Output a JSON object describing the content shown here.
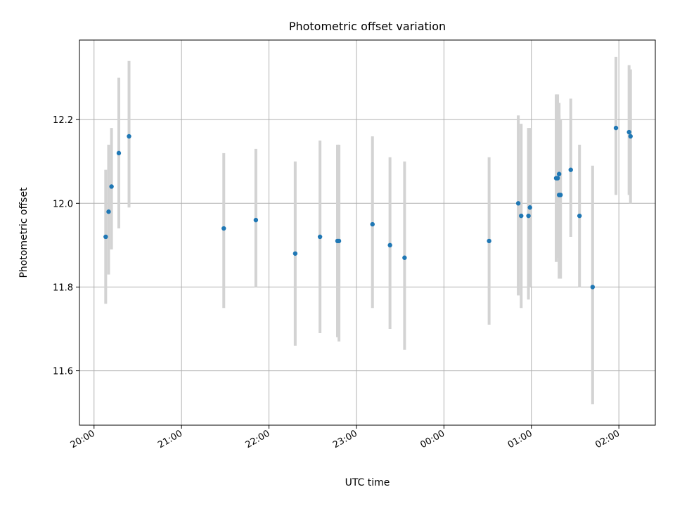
{
  "chart_data": {
    "type": "scatter",
    "title": "Photometric offset variation",
    "xlabel": "UTC time",
    "ylabel": "Photometric offset",
    "xlim": [
      "19:50",
      "02:25"
    ],
    "ylim": [
      11.47,
      12.39
    ],
    "x_ticks": [
      "20:00",
      "21:00",
      "22:00",
      "23:00",
      "00:00",
      "01:00",
      "02:00"
    ],
    "y_ticks": [
      "11.6",
      "11.8",
      "12.0",
      "12.2"
    ],
    "y_tick_values": [
      11.6,
      11.8,
      12.0,
      12.2
    ],
    "grid": true,
    "colors": {
      "marker": "#1f77b4",
      "errorbar": "#d3d3d3",
      "grid": "#b0b0b0",
      "frame": "#000000"
    },
    "points": [
      {
        "x": "20:08",
        "y": 11.92,
        "ylo": 11.76,
        "yhi": 12.08
      },
      {
        "x": "20:10",
        "y": 11.98,
        "ylo": 11.83,
        "yhi": 12.14
      },
      {
        "x": "20:12",
        "y": 12.04,
        "ylo": 11.89,
        "yhi": 12.18
      },
      {
        "x": "20:17",
        "y": 12.12,
        "ylo": 11.94,
        "yhi": 12.3
      },
      {
        "x": "20:24",
        "y": 12.16,
        "ylo": 11.99,
        "yhi": 12.34
      },
      {
        "x": "21:29",
        "y": 11.94,
        "ylo": 11.75,
        "yhi": 12.12
      },
      {
        "x": "21:51",
        "y": 11.96,
        "ylo": 11.8,
        "yhi": 12.13
      },
      {
        "x": "22:18",
        "y": 11.88,
        "ylo": 11.66,
        "yhi": 12.1
      },
      {
        "x": "22:35",
        "y": 11.92,
        "ylo": 11.69,
        "yhi": 12.15
      },
      {
        "x": "22:47",
        "y": 11.91,
        "ylo": 11.68,
        "yhi": 12.14
      },
      {
        "x": "22:48",
        "y": 11.91,
        "ylo": 11.67,
        "yhi": 12.14
      },
      {
        "x": "23:11",
        "y": 11.95,
        "ylo": 11.75,
        "yhi": 12.16
      },
      {
        "x": "23:23",
        "y": 11.9,
        "ylo": 11.7,
        "yhi": 12.11
      },
      {
        "x": "23:33",
        "y": 11.87,
        "ylo": 11.65,
        "yhi": 12.1
      },
      {
        "x": "00:31",
        "y": 11.91,
        "ylo": 11.71,
        "yhi": 12.11
      },
      {
        "x": "00:51",
        "y": 12.0,
        "ylo": 11.78,
        "yhi": 12.21
      },
      {
        "x": "00:53",
        "y": 11.97,
        "ylo": 11.75,
        "yhi": 12.19
      },
      {
        "x": "00:58",
        "y": 11.97,
        "ylo": 11.77,
        "yhi": 12.18
      },
      {
        "x": "00:59",
        "y": 11.99,
        "ylo": 11.8,
        "yhi": 12.18
      },
      {
        "x": "01:17",
        "y": 12.06,
        "ylo": 11.86,
        "yhi": 12.26
      },
      {
        "x": "01:18",
        "y": 12.06,
        "ylo": 11.87,
        "yhi": 12.26
      },
      {
        "x": "01:19",
        "y": 12.07,
        "ylo": 11.89,
        "yhi": 12.24
      },
      {
        "x": "01:19",
        "y": 12.02,
        "ylo": 11.82,
        "yhi": 12.21
      },
      {
        "x": "01:20",
        "y": 12.02,
        "ylo": 11.82,
        "yhi": 12.2
      },
      {
        "x": "01:27",
        "y": 12.08,
        "ylo": 11.92,
        "yhi": 12.25
      },
      {
        "x": "01:33",
        "y": 11.97,
        "ylo": 11.8,
        "yhi": 12.14
      },
      {
        "x": "01:42",
        "y": 11.8,
        "ylo": 11.52,
        "yhi": 12.09
      },
      {
        "x": "01:58",
        "y": 12.18,
        "ylo": 12.02,
        "yhi": 12.35
      },
      {
        "x": "02:07",
        "y": 12.17,
        "ylo": 12.02,
        "yhi": 12.33
      },
      {
        "x": "02:08",
        "y": 12.16,
        "ylo": 12.0,
        "yhi": 12.32
      }
    ]
  }
}
